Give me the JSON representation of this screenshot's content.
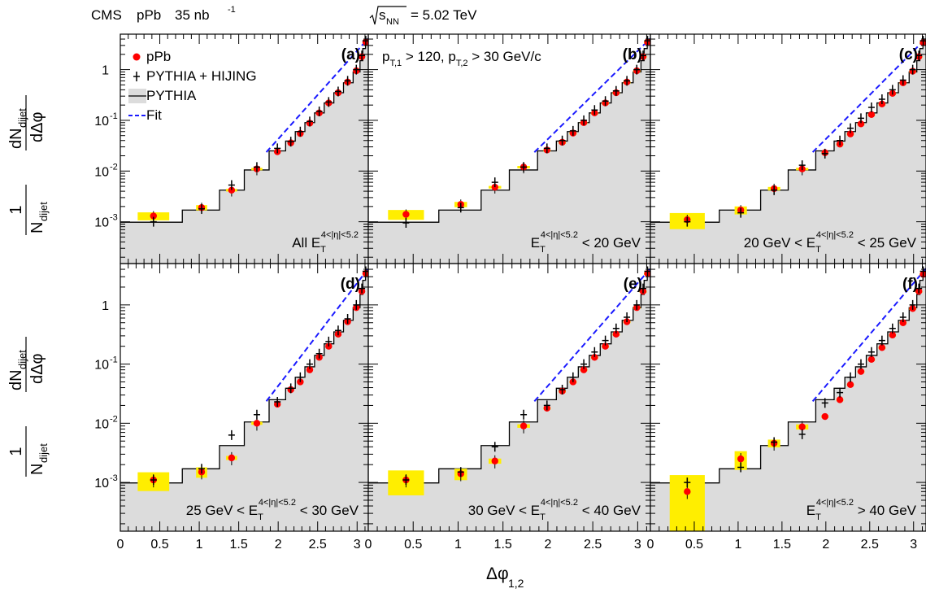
{
  "header": {
    "experiment": "CMS",
    "system": "pPb",
    "lumi_value": "35 nb",
    "lumi_exp": "-1",
    "energy_sqrt": "s",
    "energy_sub": "NN",
    "energy_value": "= 5.02 TeV"
  },
  "legend": [
    {
      "name": "pPb",
      "style": "red-dot"
    },
    {
      "name": "PYTHIA + HIJING",
      "style": "cross"
    },
    {
      "name": "PYTHIA",
      "style": "grey-fill-line"
    },
    {
      "name": "Fit",
      "style": "blue-dash"
    }
  ],
  "cut_label": {
    "p1": "p",
    "s1": "T,1",
    "t1": " > 120, ",
    "p2": "p",
    "s2": "T,2",
    "t2": " > 30 GeV/c"
  },
  "axis": {
    "ylabel_num": "dN",
    "ylabel_num_sub": "dijet",
    "ylabel_den": "dΔφ",
    "ylabel_pre_num": "1",
    "ylabel_pre_den": "N",
    "ylabel_pre_sub": "dijet",
    "xlabel": "Δφ",
    "xlabel_sub": "1,2"
  },
  "colors": {
    "data": "#ff0000",
    "syst": "#ffee00",
    "pythia_fill": "#dcdcdc",
    "fit": "#1a1aff"
  },
  "chart_data": {
    "type": "scatter",
    "log_y": true,
    "xlim": [
      0,
      3.1416
    ],
    "ylim": [
      0.00015,
      5
    ],
    "x_ticks": [
      "0",
      "0.5",
      "1",
      "1.5",
      "2",
      "2.5",
      "3"
    ],
    "y_ticks": [
      "10",
      "10",
      "10",
      "1"
    ],
    "y_tick_exps": [
      "-3",
      "-2",
      "-1",
      ""
    ],
    "pythia_edges": [
      0,
      0.7854,
      1.2566,
      1.5708,
      1.885,
      2.0944,
      2.2166,
      2.3387,
      2.4609,
      2.5831,
      2.7053,
      2.8274,
      2.9496,
      3.0369,
      3.0718,
      3.1067,
      3.1416
    ],
    "pythia_values": [
      0.00098,
      0.0017,
      0.0042,
      0.0105,
      0.025,
      0.039,
      0.06,
      0.09,
      0.14,
      0.22,
      0.35,
      0.55,
      0.9,
      1.5,
      2.6,
      4.0
    ],
    "x": [
      0.42,
      1.03,
      1.41,
      1.73,
      1.99,
      2.16,
      2.28,
      2.4,
      2.52,
      2.64,
      2.76,
      2.88,
      2.99,
      3.06,
      3.11
    ],
    "panels": [
      {
        "label": "(a)",
        "selection": "All ",
        "sel_E": "E",
        "sel_sub": "T",
        "sel_sup": "4<|η|<5.2",
        "sel_post": "",
        "data": [
          0.0013,
          0.0019,
          0.0042,
          0.011,
          0.024,
          0.036,
          0.055,
          0.088,
          0.14,
          0.22,
          0.35,
          0.57,
          0.95,
          1.8,
          3.5
        ],
        "syst": [
          0.18,
          0.12,
          0.06,
          0.05,
          0.04,
          0.04,
          0.04,
          0.04,
          0.04,
          0.04,
          0.04,
          0.04,
          0.04,
          0.04,
          0.04
        ],
        "hijing": [
          0.001,
          0.0018,
          0.0053,
          0.012,
          0.028,
          0.038,
          0.06,
          0.095,
          0.15,
          0.23,
          0.37,
          0.6,
          1.0,
          1.9,
          3.7
        ]
      },
      {
        "label": "(b)",
        "selection": "",
        "sel_E": "E",
        "sel_sub": "T",
        "sel_sup": "4<|η|<5.2",
        "sel_post": " < 20 GeV",
        "data": [
          0.0014,
          0.0022,
          0.0048,
          0.012,
          0.026,
          0.037,
          0.056,
          0.09,
          0.14,
          0.22,
          0.35,
          0.57,
          0.95,
          1.8,
          3.5
        ],
        "syst": [
          0.22,
          0.12,
          0.06,
          0.05,
          0.04,
          0.04,
          0.04,
          0.04,
          0.04,
          0.04,
          0.04,
          0.04,
          0.04,
          0.04,
          0.04
        ],
        "hijing": [
          0.00095,
          0.0019,
          0.006,
          0.012,
          0.028,
          0.04,
          0.062,
          0.1,
          0.16,
          0.24,
          0.38,
          0.6,
          1.0,
          1.9,
          3.7
        ]
      },
      {
        "label": "(c)",
        "selection": "20 GeV < ",
        "sel_E": "E",
        "sel_sub": "T",
        "sel_sup": "4<|η|<5.2",
        "sel_post": " < 25 GeV",
        "data": [
          0.0011,
          0.0017,
          0.0045,
          0.011,
          0.023,
          0.034,
          0.054,
          0.085,
          0.13,
          0.21,
          0.34,
          0.55,
          0.93,
          1.8,
          3.4
        ],
        "syst": [
          0.35,
          0.18,
          0.08,
          0.05,
          0.04,
          0.04,
          0.04,
          0.04,
          0.04,
          0.04,
          0.04,
          0.04,
          0.04,
          0.04,
          0.04
        ],
        "hijing": [
          0.001,
          0.0015,
          0.0042,
          0.013,
          0.022,
          0.04,
          0.07,
          0.11,
          0.18,
          0.26,
          0.4,
          0.62,
          1.0,
          1.9,
          3.7
        ]
      },
      {
        "label": "(d)",
        "selection": "25 GeV < ",
        "sel_E": "E",
        "sel_sub": "T",
        "sel_sup": "4<|η|<5.2",
        "sel_post": " < 30 GeV",
        "data": [
          0.0011,
          0.0015,
          0.0026,
          0.01,
          0.021,
          0.037,
          0.05,
          0.08,
          0.13,
          0.2,
          0.32,
          0.52,
          0.9,
          1.7,
          3.4
        ],
        "syst": [
          0.35,
          0.2,
          0.08,
          0.06,
          0.04,
          0.04,
          0.04,
          0.04,
          0.04,
          0.04,
          0.04,
          0.04,
          0.04,
          0.04,
          0.04
        ],
        "hijing": [
          0.0011,
          0.0017,
          0.0063,
          0.014,
          0.023,
          0.039,
          0.06,
          0.1,
          0.15,
          0.24,
          0.37,
          0.58,
          1.0,
          1.9,
          3.7
        ]
      },
      {
        "label": "(e)",
        "selection": "30 GeV < ",
        "sel_E": "E",
        "sel_sub": "T",
        "sel_sup": "4<|η|<5.2",
        "sel_post": " < 40 GeV",
        "data": [
          0.0011,
          0.0014,
          0.0023,
          0.009,
          0.018,
          0.035,
          0.05,
          0.08,
          0.13,
          0.2,
          0.32,
          0.52,
          0.9,
          1.7,
          3.4
        ],
        "syst": [
          0.45,
          0.22,
          0.1,
          0.07,
          0.04,
          0.04,
          0.04,
          0.04,
          0.04,
          0.04,
          0.04,
          0.04,
          0.04,
          0.04,
          0.04
        ],
        "hijing": [
          0.0011,
          0.0015,
          0.004,
          0.014,
          0.02,
          0.037,
          0.06,
          0.1,
          0.16,
          0.25,
          0.4,
          0.62,
          1.0,
          1.9,
          3.7
        ]
      },
      {
        "label": "(f)",
        "selection": "",
        "sel_E": "E",
        "sel_sub": "T",
        "sel_sup": "4<|η|<5.2",
        "sel_post": " > 40 GeV",
        "data": [
          0.0007,
          0.0025,
          0.0046,
          0.0087,
          0.013,
          0.025,
          0.045,
          0.075,
          0.12,
          0.19,
          0.31,
          0.5,
          0.87,
          1.7,
          3.3
        ],
        "syst": [
          0.9,
          0.35,
          0.15,
          0.1,
          0.06,
          0.04,
          0.04,
          0.04,
          0.04,
          0.04,
          0.04,
          0.04,
          0.04,
          0.04,
          0.04
        ],
        "hijing": [
          0.001,
          0.0018,
          0.0048,
          0.0065,
          0.022,
          0.033,
          0.06,
          0.1,
          0.16,
          0.25,
          0.4,
          0.62,
          1.0,
          1.9,
          3.7
        ]
      }
    ]
  }
}
